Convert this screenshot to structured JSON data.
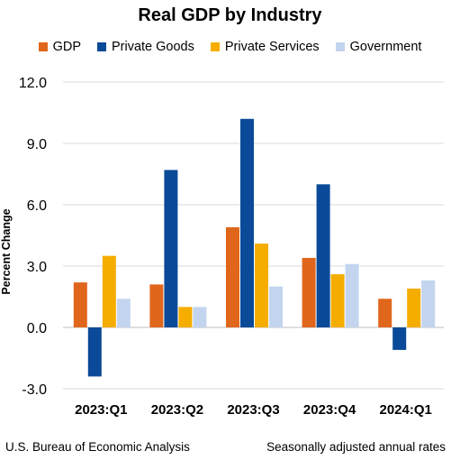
{
  "chart_data": {
    "type": "bar",
    "title": "Real GDP by Industry",
    "ylabel": "Percent Change",
    "xlabel": "",
    "ylim": [
      -3.0,
      12.0
    ],
    "yticks": [
      "12.0",
      "9.0",
      "6.0",
      "3.0",
      "0.0",
      "-3.0"
    ],
    "ytick_values": [
      12,
      9,
      6,
      3,
      0,
      -3
    ],
    "categories": [
      "2023:Q1",
      "2023:Q2",
      "2023:Q3",
      "2023:Q4",
      "2024:Q1"
    ],
    "series": [
      {
        "name": "GDP",
        "color": "#e0661c",
        "values": [
          2.2,
          2.1,
          4.9,
          3.4,
          1.4
        ]
      },
      {
        "name": "Private Goods",
        "color": "#0a4a98",
        "values": [
          -2.4,
          7.7,
          10.2,
          7.0,
          -1.1
        ]
      },
      {
        "name": "Private Services",
        "color": "#f5ad00",
        "values": [
          3.5,
          1.0,
          4.1,
          2.6,
          1.9
        ]
      },
      {
        "name": "Government",
        "color": "#c3d5ee",
        "values": [
          1.4,
          1.0,
          2.0,
          3.1,
          2.3
        ]
      }
    ],
    "legend_position": "top",
    "grid": true
  },
  "footer": {
    "source": "U.S. Bureau of Economic Analysis",
    "note": "Seasonally adjusted annual rates"
  }
}
